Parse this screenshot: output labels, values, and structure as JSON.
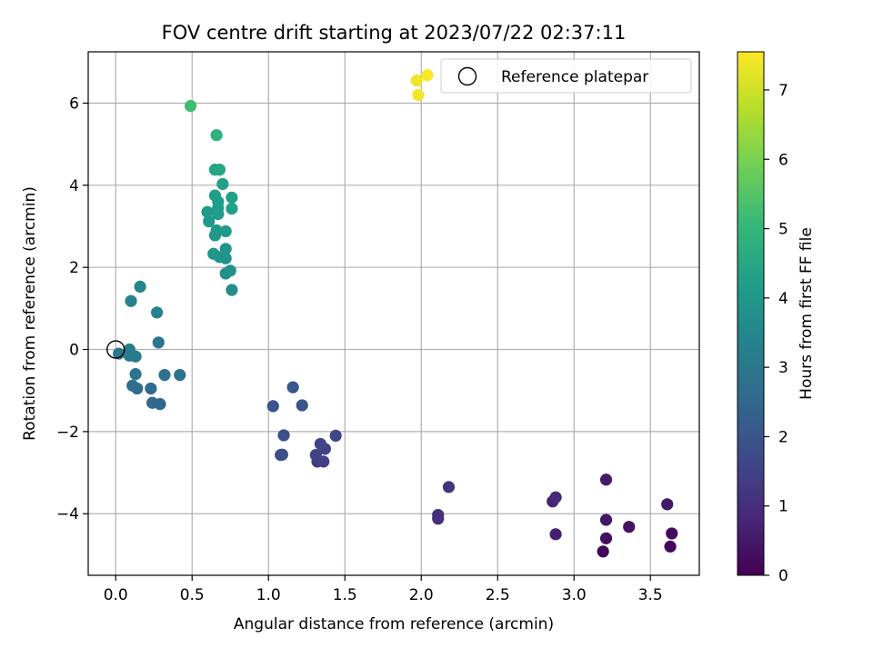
{
  "chart_data": {
    "type": "scatter",
    "title": "FOV centre drift starting at 2023/07/22 02:37:11",
    "xlabel": "Angular distance from reference (arcmin)",
    "ylabel": "Rotation from reference (arcmin)",
    "xlim": [
      -0.18,
      3.82
    ],
    "ylim": [
      -5.5,
      7.25
    ],
    "xticks": [
      0.0,
      0.5,
      1.0,
      1.5,
      2.0,
      2.5,
      3.0,
      3.5
    ],
    "xtick_labels": [
      "0.0",
      "0.5",
      "1.0",
      "1.5",
      "2.0",
      "2.5",
      "3.0",
      "3.5"
    ],
    "yticks": [
      -4,
      -2,
      0,
      2,
      4,
      6
    ],
    "ytick_labels": [
      "−4",
      "−2",
      "0",
      "2",
      "4",
      "6"
    ],
    "grid": true,
    "legend": {
      "placement": "upper-right",
      "entries": [
        "Reference platepar"
      ]
    },
    "colorbar": {
      "label": "Hours from first FF file",
      "range": [
        0,
        7.55
      ],
      "ticks": [
        0,
        1,
        2,
        3,
        4,
        5,
        6,
        7
      ],
      "tick_labels": [
        "0",
        "1",
        "2",
        "3",
        "4",
        "5",
        "6",
        "7"
      ],
      "colormap": "viridis"
    },
    "reference_point": {
      "x": 0.0,
      "y": 0.0
    },
    "points": [
      {
        "x": 3.19,
        "y": -4.92,
        "t": 0.1
      },
      {
        "x": 3.63,
        "y": -4.8,
        "t": 0.15
      },
      {
        "x": 3.64,
        "y": -4.48,
        "t": 0.2
      },
      {
        "x": 3.21,
        "y": -4.6,
        "t": 0.25
      },
      {
        "x": 3.36,
        "y": -4.32,
        "t": 0.35
      },
      {
        "x": 3.21,
        "y": -4.15,
        "t": 0.45
      },
      {
        "x": 3.61,
        "y": -3.77,
        "t": 0.5
      },
      {
        "x": 3.21,
        "y": -3.17,
        "t": 0.55
      },
      {
        "x": 2.88,
        "y": -4.5,
        "t": 0.65
      },
      {
        "x": 2.86,
        "y": -3.7,
        "t": 0.75
      },
      {
        "x": 2.88,
        "y": -3.6,
        "t": 0.85
      },
      {
        "x": 2.11,
        "y": -4.12,
        "t": 0.95
      },
      {
        "x": 2.11,
        "y": -4.03,
        "t": 1.05
      },
      {
        "x": 2.18,
        "y": -3.35,
        "t": 1.15
      },
      {
        "x": 1.32,
        "y": -2.73,
        "t": 1.4
      },
      {
        "x": 1.36,
        "y": -2.73,
        "t": 1.45
      },
      {
        "x": 1.31,
        "y": -2.57,
        "t": 1.5
      },
      {
        "x": 1.37,
        "y": -2.42,
        "t": 1.55
      },
      {
        "x": 1.34,
        "y": -2.3,
        "t": 1.6
      },
      {
        "x": 1.44,
        "y": -2.1,
        "t": 1.65
      },
      {
        "x": 1.08,
        "y": -2.57,
        "t": 1.75
      },
      {
        "x": 1.09,
        "y": -2.56,
        "t": 1.8
      },
      {
        "x": 1.1,
        "y": -2.09,
        "t": 1.85
      },
      {
        "x": 1.03,
        "y": -1.38,
        "t": 1.95
      },
      {
        "x": 1.22,
        "y": -1.36,
        "t": 2.0
      },
      {
        "x": 1.16,
        "y": -0.92,
        "t": 2.05
      },
      {
        "x": 0.29,
        "y": -1.33,
        "t": 2.5
      },
      {
        "x": 0.24,
        "y": -1.3,
        "t": 2.55
      },
      {
        "x": 0.23,
        "y": -0.95,
        "t": 2.6
      },
      {
        "x": 0.14,
        "y": -0.95,
        "t": 2.65
      },
      {
        "x": 0.11,
        "y": -0.88,
        "t": 2.7
      },
      {
        "x": 0.32,
        "y": -0.62,
        "t": 2.8
      },
      {
        "x": 0.42,
        "y": -0.62,
        "t": 2.85
      },
      {
        "x": 0.13,
        "y": -0.6,
        "t": 2.9
      },
      {
        "x": 0.28,
        "y": 0.17,
        "t": 2.95
      },
      {
        "x": 0.02,
        "y": -0.1,
        "t": 3.0
      },
      {
        "x": 0.09,
        "y": -0.15,
        "t": 3.05
      },
      {
        "x": 0.13,
        "y": -0.17,
        "t": 3.1
      },
      {
        "x": 0.09,
        "y": 0.0,
        "t": 3.15
      },
      {
        "x": 0.27,
        "y": 0.9,
        "t": 3.3
      },
      {
        "x": 0.1,
        "y": 1.18,
        "t": 3.4
      },
      {
        "x": 0.16,
        "y": 1.53,
        "t": 3.45
      },
      {
        "x": 0.76,
        "y": 1.45,
        "t": 3.7
      },
      {
        "x": 0.72,
        "y": 1.85,
        "t": 3.75
      },
      {
        "x": 0.75,
        "y": 1.92,
        "t": 3.8
      },
      {
        "x": 0.72,
        "y": 2.22,
        "t": 3.85
      },
      {
        "x": 0.68,
        "y": 2.25,
        "t": 3.9
      },
      {
        "x": 0.72,
        "y": 2.45,
        "t": 3.92
      },
      {
        "x": 0.64,
        "y": 2.33,
        "t": 3.95
      },
      {
        "x": 0.65,
        "y": 2.78,
        "t": 4.0
      },
      {
        "x": 0.66,
        "y": 2.9,
        "t": 4.02
      },
      {
        "x": 0.72,
        "y": 2.88,
        "t": 4.05
      },
      {
        "x": 0.61,
        "y": 3.12,
        "t": 4.08
      },
      {
        "x": 0.6,
        "y": 3.35,
        "t": 4.1
      },
      {
        "x": 0.67,
        "y": 3.3,
        "t": 4.12
      },
      {
        "x": 0.67,
        "y": 3.45,
        "t": 4.15
      },
      {
        "x": 0.67,
        "y": 3.6,
        "t": 4.18
      },
      {
        "x": 0.65,
        "y": 3.75,
        "t": 4.2
      },
      {
        "x": 0.76,
        "y": 3.43,
        "t": 4.22
      },
      {
        "x": 0.76,
        "y": 3.7,
        "t": 4.25
      },
      {
        "x": 0.7,
        "y": 4.03,
        "t": 4.3
      },
      {
        "x": 0.65,
        "y": 4.38,
        "t": 4.4
      },
      {
        "x": 0.68,
        "y": 4.38,
        "t": 4.5
      },
      {
        "x": 0.66,
        "y": 5.22,
        "t": 4.8
      },
      {
        "x": 0.49,
        "y": 5.93,
        "t": 5.2
      },
      {
        "x": 1.97,
        "y": 6.55,
        "t": 7.4
      },
      {
        "x": 1.98,
        "y": 6.2,
        "t": 7.45
      },
      {
        "x": 2.04,
        "y": 6.68,
        "t": 7.5
      }
    ]
  }
}
